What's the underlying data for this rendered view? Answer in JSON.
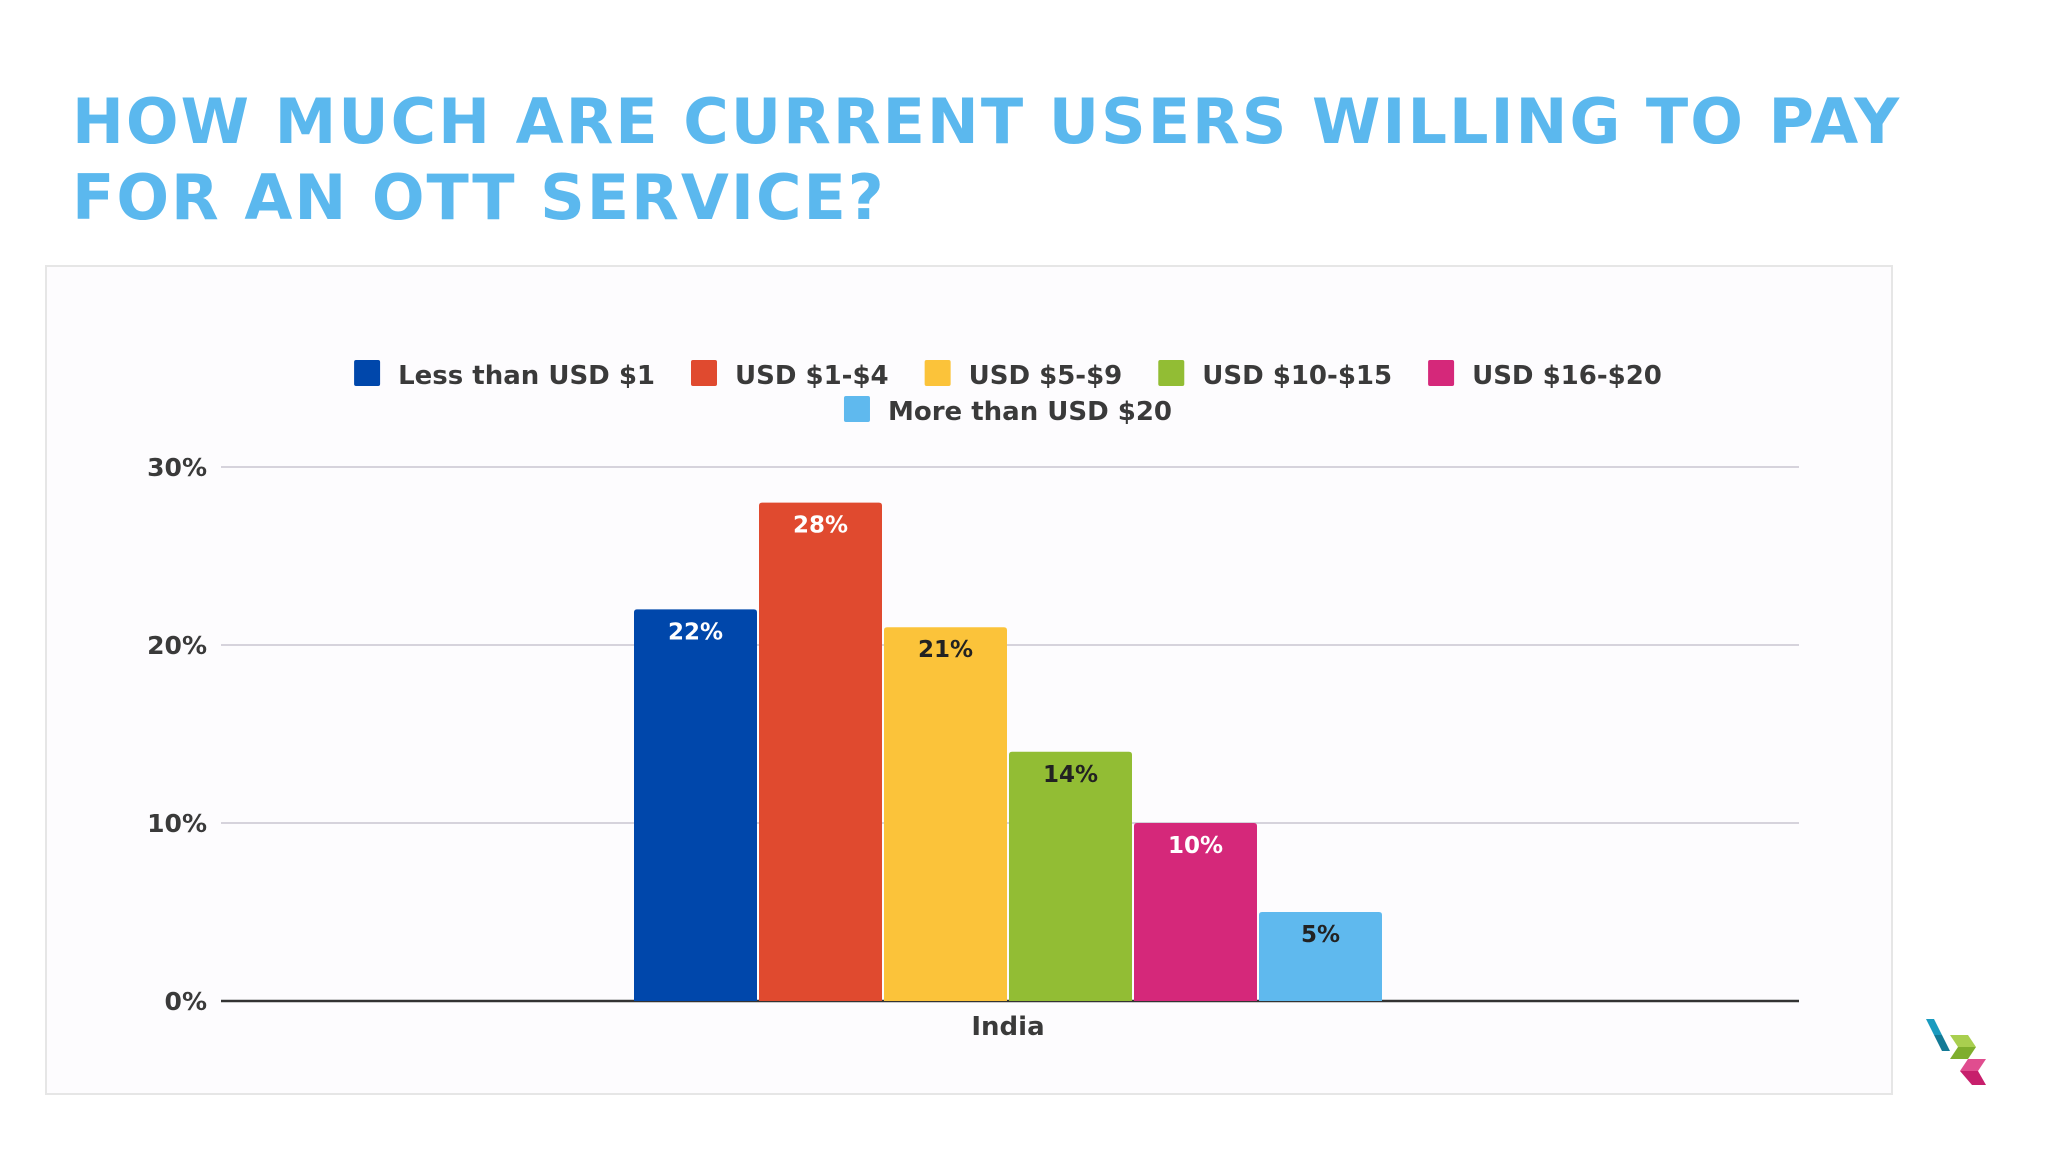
{
  "title": {
    "line1": "HOW MUCH ARE CURRENT USERS WILLING TO PAY",
    "line2": "FOR AN OTT SERVICE?"
  },
  "logo": {
    "icon": "cube-logo-icon",
    "colors": [
      "#1a9bbf",
      "#8dbf3d",
      "#d62d7b"
    ]
  },
  "chart_data": {
    "type": "bar",
    "categories": [
      "India"
    ],
    "series": [
      {
        "name": "Less than USD $1",
        "values": [
          22
        ],
        "color": "#0047ab",
        "label_color": "#ffffff"
      },
      {
        "name": "USD $1-$4",
        "values": [
          28
        ],
        "color": "#e04a2f",
        "label_color": "#ffffff"
      },
      {
        "name": "USD $5-$9",
        "values": [
          21
        ],
        "color": "#fbc33a",
        "label_color": "#222222"
      },
      {
        "name": "USD $10-$15",
        "values": [
          14
        ],
        "color": "#92bd34",
        "label_color": "#222222"
      },
      {
        "name": "USD $16-$20",
        "values": [
          10
        ],
        "color": "#d5287a",
        "label_color": "#ffffff"
      },
      {
        "name": "More than USD $20",
        "values": [
          5
        ],
        "color": "#5fb9ee",
        "label_color": "#222222"
      }
    ],
    "data_labels": [
      "22%",
      "28%",
      "21%",
      "14%",
      "10%",
      "5%"
    ],
    "y_ticks": [
      {
        "value": 0,
        "label": "0%"
      },
      {
        "value": 10,
        "label": "10%"
      },
      {
        "value": 20,
        "label": "20%"
      },
      {
        "value": 30,
        "label": "30%"
      }
    ],
    "ylim": [
      0,
      30
    ],
    "grid": true,
    "legend_position": "top-center",
    "title": "",
    "xlabel": "",
    "ylabel": ""
  }
}
